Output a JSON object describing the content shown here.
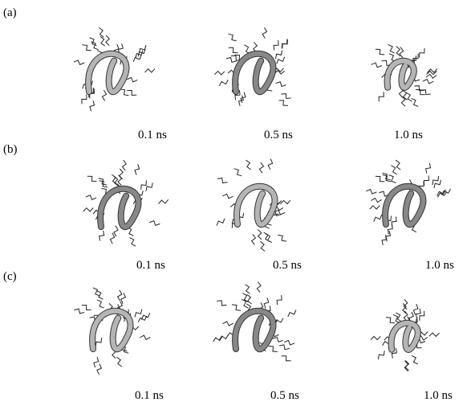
{
  "panels": [
    {
      "label": "(a)",
      "frames": [
        "0.1 ns",
        "0.5 ns",
        "1.0 ns"
      ]
    },
    {
      "label": "(b)",
      "frames": [
        "0.1 ns",
        "0.5 ns",
        "1.0 ns"
      ]
    },
    {
      "label": "(c)",
      "frames": [
        "0.1 ns",
        "0.5 ns",
        "1.0 ns"
      ]
    }
  ]
}
